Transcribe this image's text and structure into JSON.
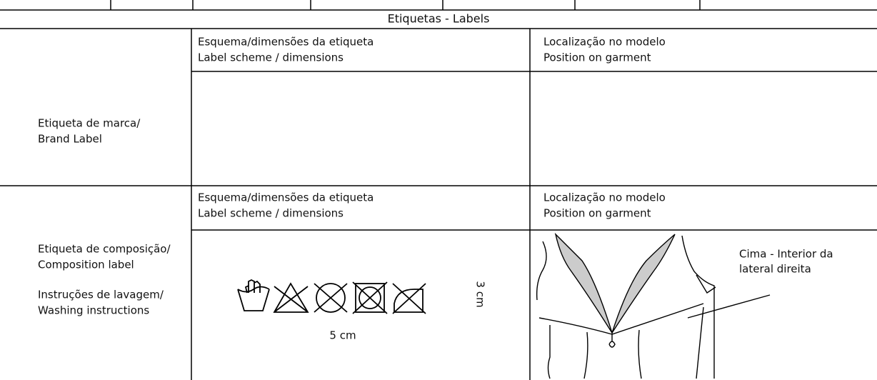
{
  "table": {
    "title": "Etiquetas - Labels",
    "rows": [
      {
        "label": [
          "Etiqueta de marca/",
          "Brand Label"
        ],
        "scheme_header": [
          "Esquema/dimensões da etiqueta",
          "Label scheme / dimensions"
        ],
        "position_header": [
          "Localização no modelo",
          "Position on garment"
        ]
      },
      {
        "label": [
          "Etiqueta de composição/",
          "Composition label"
        ],
        "washing": [
          "Instruções de lavagem/",
          "Washing instructions"
        ],
        "scheme_header": [
          "Esquema/dimensões da etiqueta",
          "Label scheme / dimensions"
        ],
        "position_header": [
          "Localização no modelo",
          "Position on garment"
        ],
        "width": "5 cm",
        "height": "3 cm",
        "position_note": [
          "Cima - Interior da",
          "lateral direita"
        ]
      }
    ]
  }
}
